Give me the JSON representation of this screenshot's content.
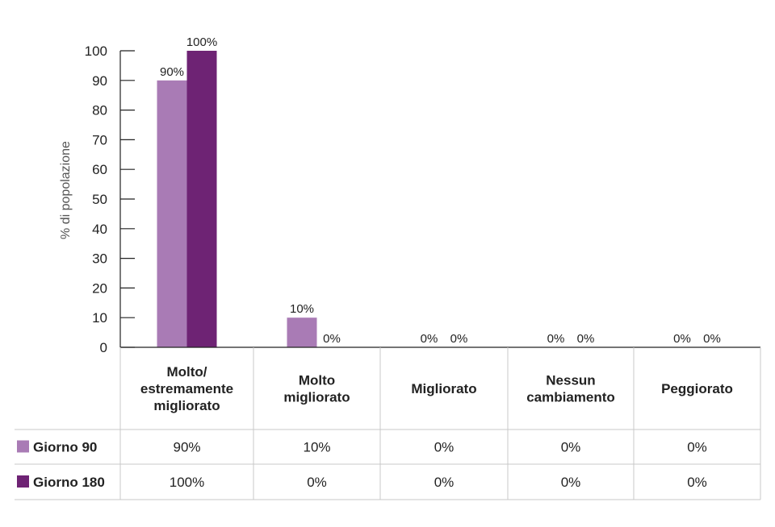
{
  "chart_data": {
    "type": "bar",
    "ylabel": "% di popolazione",
    "ylim": [
      0,
      100
    ],
    "yticks": [
      0,
      10,
      20,
      30,
      40,
      50,
      60,
      70,
      80,
      90,
      100
    ],
    "categories": [
      "Molto/\nestremamente\nmigliorato",
      "Molto\nmigliorato",
      "Migliorato",
      "Nessun\ncambiamento",
      "Peggiorato"
    ],
    "series": [
      {
        "name": "Giorno 90",
        "color": "#a97bb5",
        "values": [
          90,
          10,
          0,
          0,
          0
        ],
        "labels": [
          "90%",
          "10%",
          "0%",
          "0%",
          "0%"
        ]
      },
      {
        "name": "Giorno 180",
        "color": "#6e2374",
        "values": [
          100,
          0,
          0,
          0,
          0
        ],
        "labels": [
          "100%",
          "0%",
          "0%",
          "0%",
          "0%"
        ]
      }
    ],
    "grid": false,
    "legend": "table-left"
  },
  "colors": {
    "axis": "#222222",
    "table_border": "#c8c8c8"
  }
}
